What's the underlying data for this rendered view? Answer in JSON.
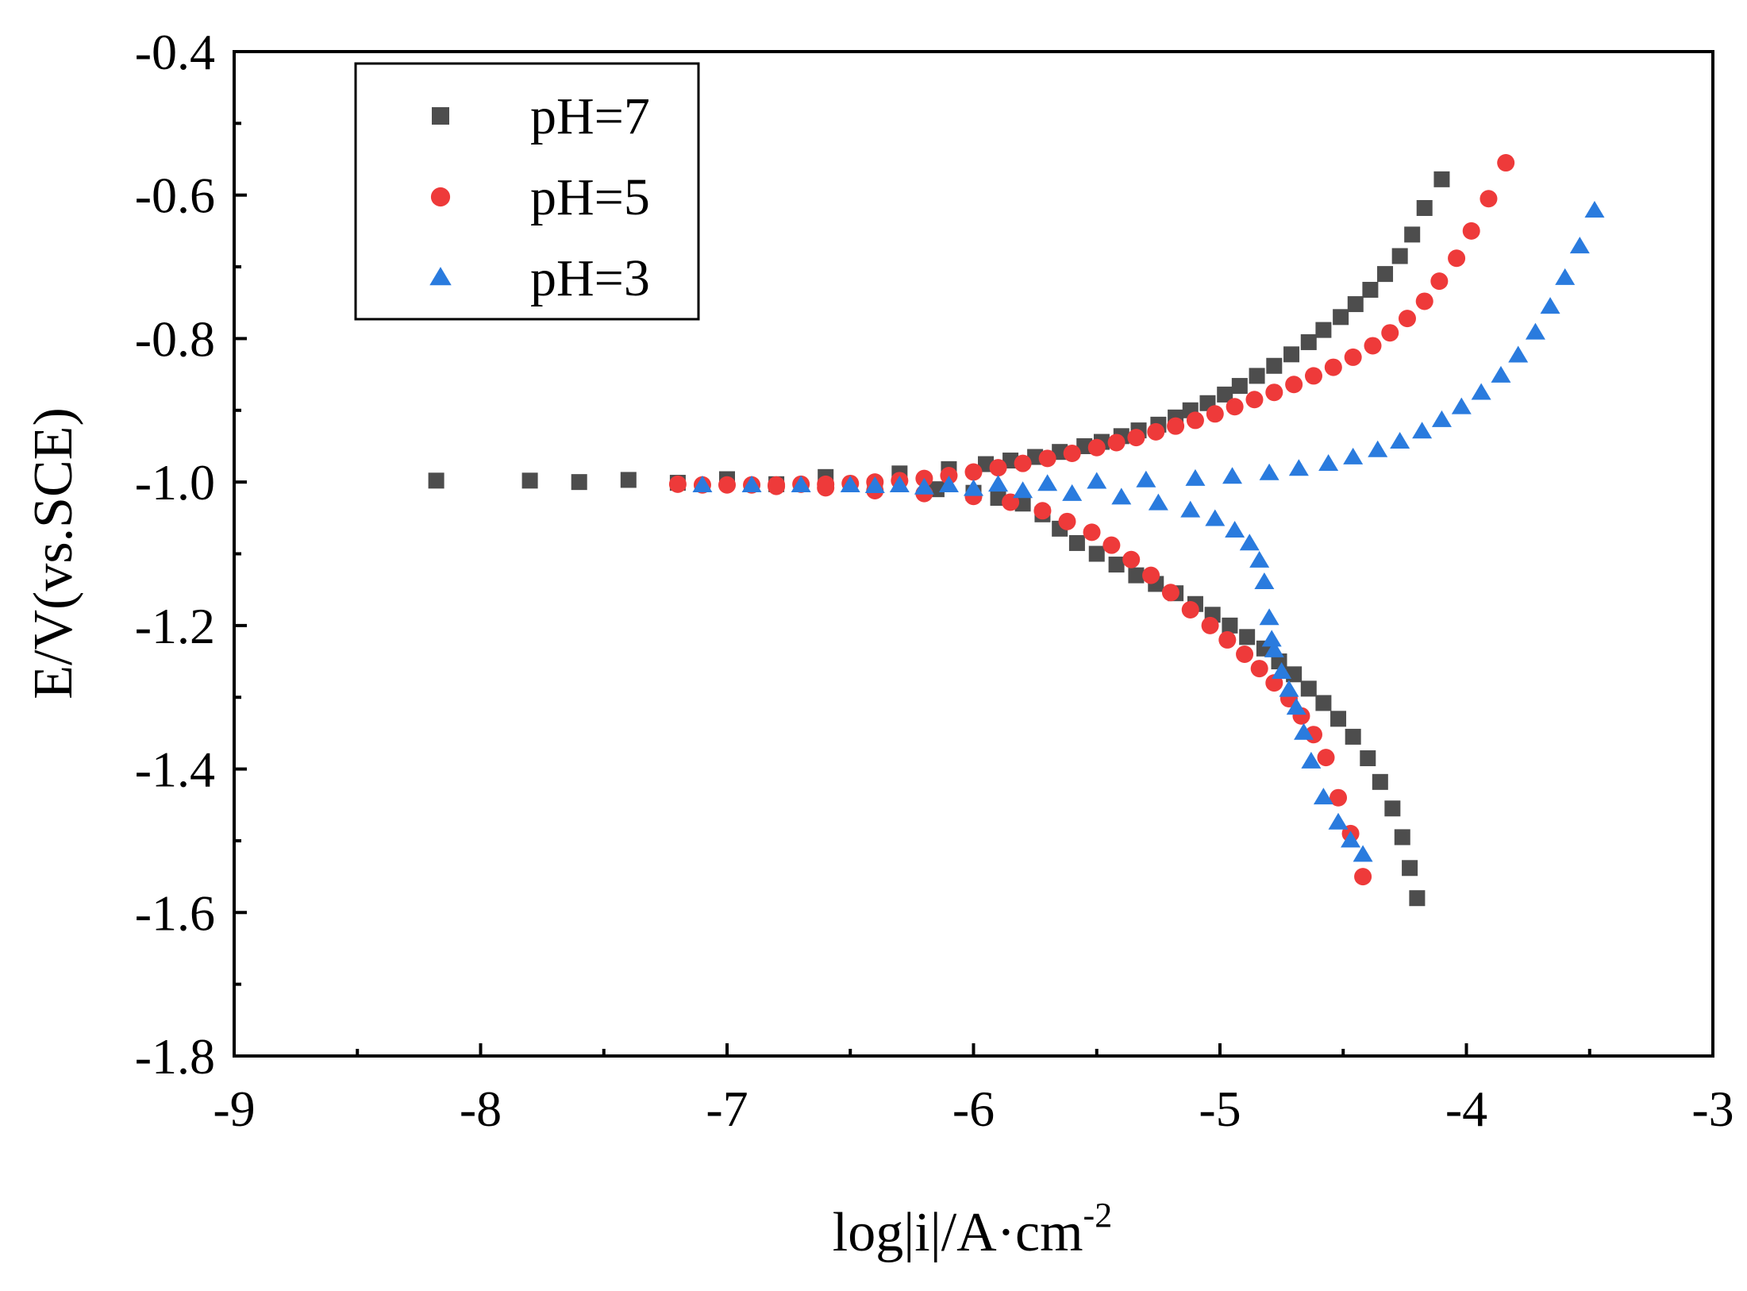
{
  "chart_data": {
    "type": "scatter",
    "title": "",
    "xlabel": "log|i|/A·cm",
    "xlabel_superscript": "-2",
    "ylabel": "E/V(vs.SCE)",
    "xlim": [
      -9,
      -3
    ],
    "ylim": [
      -1.8,
      -0.4
    ],
    "x_ticks": [
      -9,
      -8,
      -7,
      -6,
      -5,
      -4,
      -3
    ],
    "x_tick_labels": [
      "-9",
      "-8",
      "-7",
      "-6",
      "-5",
      "-4",
      "-3"
    ],
    "y_ticks": [
      -1.8,
      -1.6,
      -1.4,
      -1.2,
      -1.0,
      -0.8,
      -0.6,
      -0.4
    ],
    "y_tick_labels": [
      "-1.8",
      "-1.6",
      "-1.4",
      "-1.2",
      "-1.0",
      "-0.8",
      "-0.6",
      "-0.4"
    ],
    "grid": false,
    "legend_position": "top-left",
    "series": [
      {
        "name": "pH=7",
        "marker": "square",
        "color": "#4d4d4d",
        "anodic": [
          [
            -8.18,
            -0.998
          ],
          [
            -7.8,
            -0.998
          ],
          [
            -7.4,
            -0.997
          ],
          [
            -7.0,
            -0.996
          ],
          [
            -6.6,
            -0.993
          ],
          [
            -6.3,
            -0.988
          ],
          [
            -6.1,
            -0.982
          ],
          [
            -5.95,
            -0.975
          ],
          [
            -5.85,
            -0.97
          ],
          [
            -5.75,
            -0.965
          ],
          [
            -5.65,
            -0.958
          ],
          [
            -5.55,
            -0.95
          ],
          [
            -5.48,
            -0.944
          ],
          [
            -5.4,
            -0.936
          ],
          [
            -5.33,
            -0.928
          ],
          [
            -5.25,
            -0.92
          ],
          [
            -5.18,
            -0.91
          ],
          [
            -5.12,
            -0.9
          ],
          [
            -5.05,
            -0.89
          ],
          [
            -4.98,
            -0.878
          ],
          [
            -4.92,
            -0.866
          ],
          [
            -4.85,
            -0.852
          ],
          [
            -4.78,
            -0.838
          ],
          [
            -4.71,
            -0.822
          ],
          [
            -4.64,
            -0.805
          ],
          [
            -4.58,
            -0.788
          ],
          [
            -4.51,
            -0.77
          ],
          [
            -4.45,
            -0.752
          ],
          [
            -4.39,
            -0.732
          ],
          [
            -4.33,
            -0.71
          ],
          [
            -4.27,
            -0.685
          ],
          [
            -4.22,
            -0.655
          ],
          [
            -4.17,
            -0.618
          ],
          [
            -4.1,
            -0.578
          ]
        ],
        "cathodic": [
          [
            -7.6,
            -1.0
          ],
          [
            -7.2,
            -1.001
          ],
          [
            -6.8,
            -1.003
          ],
          [
            -6.4,
            -1.006
          ],
          [
            -6.15,
            -1.01
          ],
          [
            -6.0,
            -1.015
          ],
          [
            -5.9,
            -1.022
          ],
          [
            -5.8,
            -1.03
          ],
          [
            -5.72,
            -1.045
          ],
          [
            -5.65,
            -1.065
          ],
          [
            -5.58,
            -1.085
          ],
          [
            -5.5,
            -1.1
          ],
          [
            -5.42,
            -1.115
          ],
          [
            -5.34,
            -1.13
          ],
          [
            -5.26,
            -1.142
          ],
          [
            -5.18,
            -1.155
          ],
          [
            -5.1,
            -1.17
          ],
          [
            -5.03,
            -1.185
          ],
          [
            -4.96,
            -1.2
          ],
          [
            -4.89,
            -1.216
          ],
          [
            -4.82,
            -1.232
          ],
          [
            -4.76,
            -1.25
          ],
          [
            -4.7,
            -1.268
          ],
          [
            -4.64,
            -1.288
          ],
          [
            -4.58,
            -1.308
          ],
          [
            -4.52,
            -1.33
          ],
          [
            -4.46,
            -1.355
          ],
          [
            -4.4,
            -1.385
          ],
          [
            -4.35,
            -1.418
          ],
          [
            -4.3,
            -1.455
          ],
          [
            -4.26,
            -1.495
          ],
          [
            -4.23,
            -1.538
          ],
          [
            -4.2,
            -1.58
          ]
        ]
      },
      {
        "name": "pH=5",
        "marker": "circle",
        "color": "#ee3a3a",
        "anodic": [
          [
            -7.2,
            -1.003
          ],
          [
            -7.1,
            -1.004
          ],
          [
            -7.0,
            -1.004
          ],
          [
            -6.9,
            -1.004
          ],
          [
            -6.8,
            -1.004
          ],
          [
            -6.7,
            -1.003
          ],
          [
            -6.6,
            -1.003
          ],
          [
            -6.5,
            -1.002
          ],
          [
            -6.4,
            -1.0
          ],
          [
            -6.3,
            -0.998
          ],
          [
            -6.2,
            -0.995
          ],
          [
            -6.1,
            -0.991
          ],
          [
            -6.0,
            -0.986
          ],
          [
            -5.9,
            -0.98
          ],
          [
            -5.8,
            -0.974
          ],
          [
            -5.7,
            -0.967
          ],
          [
            -5.6,
            -0.96
          ],
          [
            -5.5,
            -0.952
          ],
          [
            -5.42,
            -0.945
          ],
          [
            -5.34,
            -0.938
          ],
          [
            -5.26,
            -0.93
          ],
          [
            -5.18,
            -0.922
          ],
          [
            -5.1,
            -0.914
          ],
          [
            -5.02,
            -0.905
          ],
          [
            -4.94,
            -0.895
          ],
          [
            -4.86,
            -0.885
          ],
          [
            -4.78,
            -0.875
          ],
          [
            -4.7,
            -0.864
          ],
          [
            -4.62,
            -0.852
          ],
          [
            -4.54,
            -0.84
          ],
          [
            -4.46,
            -0.826
          ],
          [
            -4.38,
            -0.81
          ],
          [
            -4.31,
            -0.792
          ],
          [
            -4.24,
            -0.772
          ],
          [
            -4.17,
            -0.748
          ],
          [
            -4.11,
            -0.72
          ],
          [
            -4.04,
            -0.688
          ],
          [
            -3.98,
            -0.65
          ],
          [
            -3.91,
            -0.605
          ],
          [
            -3.84,
            -0.555
          ]
        ],
        "cathodic": [
          [
            -6.8,
            -1.006
          ],
          [
            -6.6,
            -1.008
          ],
          [
            -6.4,
            -1.012
          ],
          [
            -6.2,
            -1.016
          ],
          [
            -6.0,
            -1.02
          ],
          [
            -5.85,
            -1.028
          ],
          [
            -5.72,
            -1.04
          ],
          [
            -5.62,
            -1.055
          ],
          [
            -5.52,
            -1.07
          ],
          [
            -5.44,
            -1.088
          ],
          [
            -5.36,
            -1.108
          ],
          [
            -5.28,
            -1.13
          ],
          [
            -5.2,
            -1.154
          ],
          [
            -5.12,
            -1.178
          ],
          [
            -5.04,
            -1.2
          ],
          [
            -4.97,
            -1.22
          ],
          [
            -4.9,
            -1.24
          ],
          [
            -4.84,
            -1.26
          ],
          [
            -4.78,
            -1.28
          ],
          [
            -4.72,
            -1.302
          ],
          [
            -4.67,
            -1.326
          ],
          [
            -4.62,
            -1.352
          ],
          [
            -4.57,
            -1.384
          ],
          [
            -4.52,
            -1.44
          ],
          [
            -4.47,
            -1.49
          ],
          [
            -4.42,
            -1.55
          ]
        ]
      },
      {
        "name": "pH=3",
        "marker": "triangle",
        "color": "#2a7bde",
        "anodic": [
          [
            -7.1,
            -1.005
          ],
          [
            -6.9,
            -1.005
          ],
          [
            -6.7,
            -1.005
          ],
          [
            -6.5,
            -1.005
          ],
          [
            -6.3,
            -1.005
          ],
          [
            -6.1,
            -1.005
          ],
          [
            -5.9,
            -1.004
          ],
          [
            -5.7,
            -1.003
          ],
          [
            -5.5,
            -1.0
          ],
          [
            -5.3,
            -0.998
          ],
          [
            -5.1,
            -0.996
          ],
          [
            -4.95,
            -0.993
          ],
          [
            -4.8,
            -0.988
          ],
          [
            -4.68,
            -0.982
          ],
          [
            -4.56,
            -0.975
          ],
          [
            -4.46,
            -0.966
          ],
          [
            -4.36,
            -0.956
          ],
          [
            -4.27,
            -0.944
          ],
          [
            -4.18,
            -0.93
          ],
          [
            -4.1,
            -0.914
          ],
          [
            -4.02,
            -0.896
          ],
          [
            -3.94,
            -0.876
          ],
          [
            -3.86,
            -0.852
          ],
          [
            -3.79,
            -0.824
          ],
          [
            -3.72,
            -0.792
          ],
          [
            -3.66,
            -0.756
          ],
          [
            -3.6,
            -0.716
          ],
          [
            -3.54,
            -0.672
          ],
          [
            -3.48,
            -0.622
          ]
        ],
        "cathodic": [
          [
            -6.4,
            -1.006
          ],
          [
            -6.2,
            -1.008
          ],
          [
            -6.0,
            -1.01
          ],
          [
            -5.8,
            -1.013
          ],
          [
            -5.6,
            -1.017
          ],
          [
            -5.4,
            -1.022
          ],
          [
            -5.25,
            -1.03
          ],
          [
            -5.12,
            -1.04
          ],
          [
            -5.02,
            -1.052
          ],
          [
            -4.94,
            -1.068
          ],
          [
            -4.88,
            -1.086
          ],
          [
            -4.84,
            -1.11
          ],
          [
            -4.82,
            -1.14
          ],
          [
            -4.8,
            -1.19
          ],
          [
            -4.79,
            -1.22
          ],
          [
            -4.78,
            -1.235
          ],
          [
            -4.75,
            -1.265
          ],
          [
            -4.72,
            -1.29
          ],
          [
            -4.69,
            -1.315
          ],
          [
            -4.66,
            -1.35
          ],
          [
            -4.63,
            -1.39
          ],
          [
            -4.58,
            -1.44
          ],
          [
            -4.52,
            -1.475
          ],
          [
            -4.47,
            -1.5
          ],
          [
            -4.42,
            -1.52
          ]
        ]
      }
    ]
  }
}
